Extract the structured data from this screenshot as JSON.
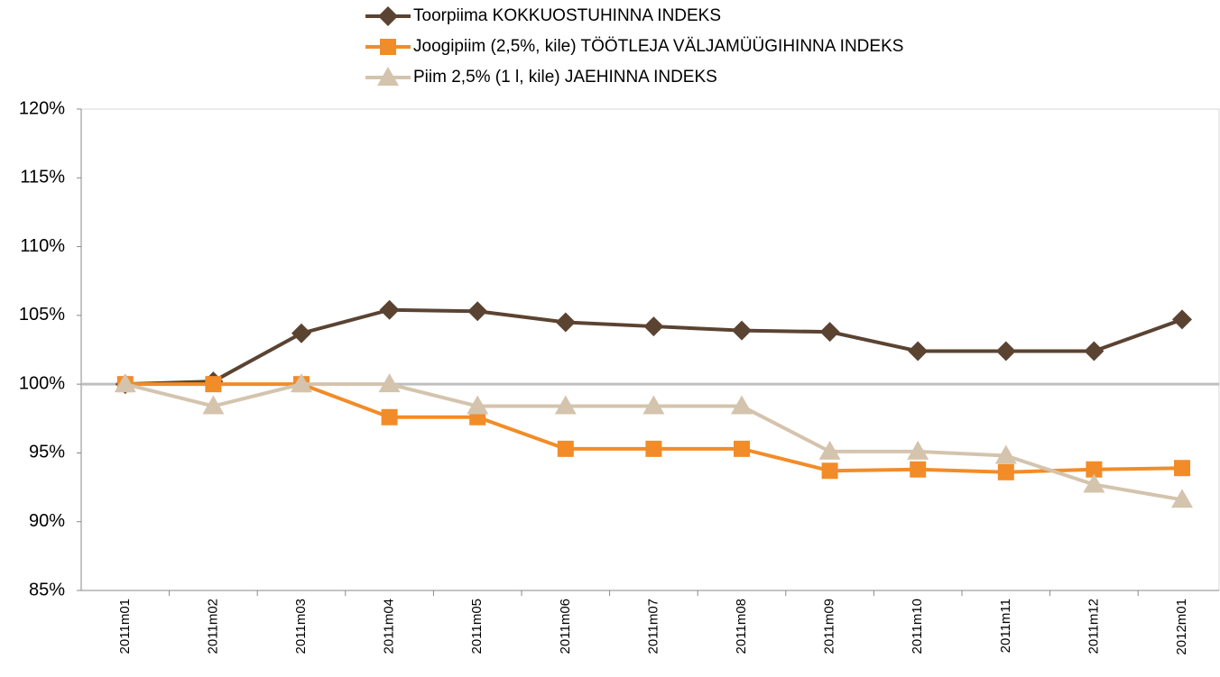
{
  "chart_data": {
    "type": "line",
    "categories": [
      "2011m01",
      "2011m02",
      "2011m03",
      "2011m04",
      "2011m05",
      "2011m06",
      "2011m07",
      "2011m08",
      "2011m09",
      "2011m10",
      "2011m11",
      "2011m12",
      "2012m01"
    ],
    "series": [
      {
        "name": "Toorpiima KOKKUOSTUHINNA INDEKS",
        "color": "#5b4332",
        "marker": "diamond",
        "values": [
          100,
          100.2,
          103.7,
          105.4,
          105.3,
          104.5,
          104.2,
          103.9,
          103.8,
          102.4,
          102.4,
          102.4,
          104.7
        ]
      },
      {
        "name": "Joogipiim (2,5%, kile) TÖÖTLEJA VÄLJAMÜÜGIHINNA INDEKS",
        "color": "#f28c28",
        "marker": "square",
        "values": [
          100,
          100,
          100,
          97.6,
          97.6,
          95.3,
          95.3,
          95.3,
          93.7,
          93.8,
          93.6,
          93.8,
          93.9
        ]
      },
      {
        "name": "Piim 2,5% (1 l, kile) JAEHINNA INDEKS",
        "color": "#d4c4ad",
        "marker": "triangle",
        "values": [
          100,
          98.4,
          100,
          100,
          98.4,
          98.4,
          98.4,
          98.4,
          95.1,
          95.1,
          94.8,
          92.7,
          91.6
        ]
      }
    ],
    "ylim": [
      85,
      120
    ],
    "yticks": [
      {
        "value": 85,
        "label": "85%"
      },
      {
        "value": 90,
        "label": "90%"
      },
      {
        "value": 95,
        "label": "95%"
      },
      {
        "value": 100,
        "label": "100%"
      },
      {
        "value": 105,
        "label": "105%"
      },
      {
        "value": 110,
        "label": "110%"
      },
      {
        "value": 115,
        "label": "115%"
      },
      {
        "value": 120,
        "label": "120%"
      }
    ],
    "reference_line": 100,
    "reference_color": "#bfbfbf",
    "legend": "top"
  }
}
